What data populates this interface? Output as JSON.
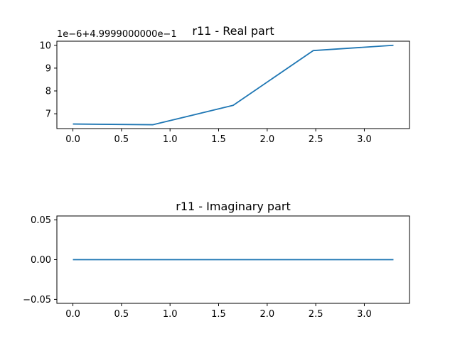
{
  "chart_data": [
    {
      "type": "line",
      "title": "r11 - Real part",
      "xlabel": "",
      "ylabel": "",
      "y_offset_label": "1e−6+4.9999000000e−1",
      "xlim": [
        -0.165,
        3.465
      ],
      "ylim": [
        6.35,
        10.18
      ],
      "xticks": [
        0.0,
        0.5,
        1.0,
        1.5,
        2.0,
        2.5,
        3.0
      ],
      "xtick_labels": [
        "0.0",
        "0.5",
        "1.0",
        "1.5",
        "2.0",
        "2.5",
        "3.0"
      ],
      "yticks": [
        7,
        8,
        9,
        10
      ],
      "ytick_labels": [
        "7",
        "8",
        "9",
        "10"
      ],
      "grid": false,
      "series": [
        {
          "color": "#1f77b4",
          "x": [
            0.0,
            0.825,
            1.65,
            2.475,
            3.3
          ],
          "y": [
            6.55,
            6.52,
            7.37,
            9.77,
            10.0
          ]
        }
      ]
    },
    {
      "type": "line",
      "title": "r11 - Imaginary part",
      "xlabel": "",
      "ylabel": "",
      "xlim": [
        -0.165,
        3.465
      ],
      "ylim": [
        -0.055,
        0.055
      ],
      "xticks": [
        0.0,
        0.5,
        1.0,
        1.5,
        2.0,
        2.5,
        3.0
      ],
      "xtick_labels": [
        "0.0",
        "0.5",
        "1.0",
        "1.5",
        "2.0",
        "2.5",
        "3.0"
      ],
      "yticks": [
        0.05,
        0.0,
        -0.05
      ],
      "ytick_labels": [
        "0.05",
        "0.00",
        "−0.05"
      ],
      "grid": false,
      "series": [
        {
          "color": "#1f77b4",
          "x": [
            0.0,
            0.825,
            1.65,
            2.475,
            3.3
          ],
          "y": [
            0.0,
            0.0,
            0.0,
            0.0,
            0.0
          ]
        }
      ]
    }
  ]
}
